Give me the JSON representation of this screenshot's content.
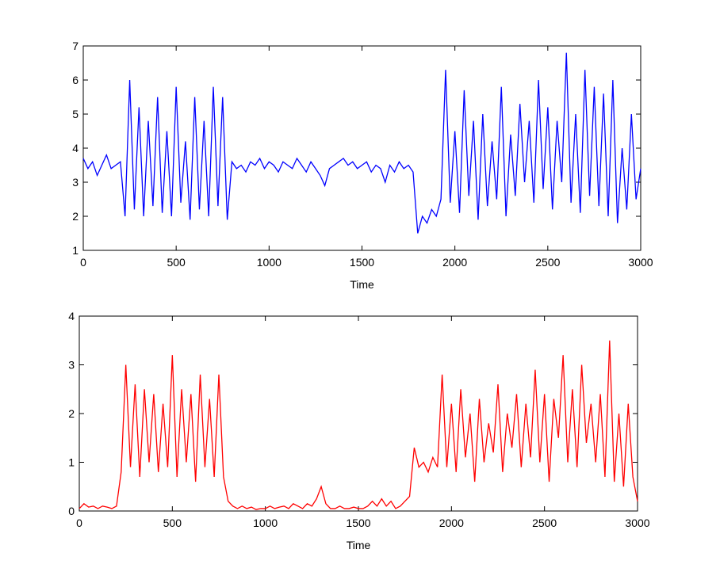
{
  "chart_data": [
    {
      "type": "line",
      "xlabel": "Time",
      "xlim": [
        0,
        3000
      ],
      "ylim": [
        1,
        7
      ],
      "xticks": [
        0,
        500,
        1000,
        1500,
        2000,
        2500,
        3000
      ],
      "yticks": [
        1,
        2,
        3,
        4,
        5,
        6,
        7
      ],
      "x": [
        0,
        25,
        50,
        75,
        100,
        125,
        150,
        175,
        200,
        225,
        250,
        275,
        300,
        325,
        350,
        375,
        400,
        425,
        450,
        475,
        500,
        525,
        550,
        575,
        600,
        625,
        650,
        675,
        700,
        725,
        750,
        775,
        800,
        825,
        850,
        875,
        900,
        925,
        950,
        975,
        1000,
        1025,
        1050,
        1075,
        1100,
        1125,
        1150,
        1175,
        1200,
        1225,
        1250,
        1275,
        1300,
        1325,
        1350,
        1375,
        1400,
        1425,
        1450,
        1475,
        1500,
        1525,
        1550,
        1575,
        1600,
        1625,
        1650,
        1675,
        1700,
        1725,
        1750,
        1775,
        1800,
        1825,
        1850,
        1875,
        1900,
        1925,
        1950,
        1975,
        2000,
        2025,
        2050,
        2075,
        2100,
        2125,
        2150,
        2175,
        2200,
        2225,
        2250,
        2275,
        2300,
        2325,
        2350,
        2375,
        2400,
        2425,
        2450,
        2475,
        2500,
        2525,
        2550,
        2575,
        2600,
        2625,
        2650,
        2675,
        2700,
        2725,
        2750,
        2775,
        2800,
        2825,
        2850,
        2875,
        2900,
        2925,
        2950,
        2975,
        3000
      ],
      "series": [
        {
          "color": "#0000ff",
          "values": [
            3.7,
            3.4,
            3.6,
            3.2,
            3.5,
            3.8,
            3.4,
            3.5,
            3.6,
            2.0,
            6.0,
            2.2,
            5.2,
            2.0,
            4.8,
            2.3,
            5.5,
            2.1,
            4.5,
            2.0,
            5.8,
            2.4,
            4.2,
            1.9,
            5.5,
            2.2,
            4.8,
            2.0,
            5.8,
            2.3,
            5.5,
            1.9,
            3.6,
            3.4,
            3.5,
            3.3,
            3.6,
            3.5,
            3.7,
            3.4,
            3.6,
            3.5,
            3.3,
            3.6,
            3.5,
            3.4,
            3.7,
            3.5,
            3.3,
            3.6,
            3.4,
            3.2,
            2.9,
            3.4,
            3.5,
            3.6,
            3.7,
            3.5,
            3.6,
            3.4,
            3.5,
            3.6,
            3.3,
            3.5,
            3.4,
            3.0,
            3.5,
            3.3,
            3.6,
            3.4,
            3.5,
            3.3,
            1.5,
            2.0,
            1.8,
            2.2,
            2.0,
            2.5,
            6.3,
            2.4,
            4.5,
            2.1,
            5.7,
            2.6,
            4.8,
            1.9,
            5.0,
            2.3,
            4.2,
            2.5,
            5.8,
            2.0,
            4.4,
            2.6,
            5.3,
            3.0,
            4.8,
            2.4,
            6.0,
            2.8,
            5.2,
            2.2,
            4.8,
            3.0,
            6.8,
            2.4,
            5.0,
            2.1,
            6.3,
            2.6,
            5.8,
            2.3,
            5.6,
            2.0,
            6.0,
            1.8,
            4.0,
            2.2,
            5.0,
            2.5,
            3.4
          ]
        }
      ]
    },
    {
      "type": "line",
      "xlabel": "Time",
      "xlim": [
        0,
        3000
      ],
      "ylim": [
        0,
        4
      ],
      "xticks": [
        0,
        500,
        1000,
        1500,
        2000,
        2500,
        3000
      ],
      "yticks": [
        0,
        1,
        2,
        3,
        4
      ],
      "x": [
        0,
        25,
        50,
        75,
        100,
        125,
        150,
        175,
        200,
        225,
        250,
        275,
        300,
        325,
        350,
        375,
        400,
        425,
        450,
        475,
        500,
        525,
        550,
        575,
        600,
        625,
        650,
        675,
        700,
        725,
        750,
        775,
        800,
        825,
        850,
        875,
        900,
        925,
        950,
        975,
        1000,
        1025,
        1050,
        1075,
        1100,
        1125,
        1150,
        1175,
        1200,
        1225,
        1250,
        1275,
        1300,
        1325,
        1350,
        1375,
        1400,
        1425,
        1450,
        1475,
        1500,
        1525,
        1550,
        1575,
        1600,
        1625,
        1650,
        1675,
        1700,
        1725,
        1750,
        1775,
        1800,
        1825,
        1850,
        1875,
        1900,
        1925,
        1950,
        1975,
        2000,
        2025,
        2050,
        2075,
        2100,
        2125,
        2150,
        2175,
        2200,
        2225,
        2250,
        2275,
        2300,
        2325,
        2350,
        2375,
        2400,
        2425,
        2450,
        2475,
        2500,
        2525,
        2550,
        2575,
        2600,
        2625,
        2650,
        2675,
        2700,
        2725,
        2750,
        2775,
        2800,
        2825,
        2850,
        2875,
        2900,
        2925,
        2950,
        2975,
        3000
      ],
      "series": [
        {
          "color": "#ff0000",
          "values": [
            0.05,
            0.15,
            0.08,
            0.1,
            0.05,
            0.1,
            0.08,
            0.05,
            0.1,
            0.8,
            3.0,
            0.9,
            2.6,
            0.7,
            2.5,
            1.0,
            2.4,
            0.8,
            2.2,
            0.9,
            3.2,
            0.7,
            2.5,
            1.0,
            2.4,
            0.6,
            2.8,
            0.9,
            2.3,
            0.7,
            2.8,
            0.7,
            0.2,
            0.1,
            0.05,
            0.1,
            0.05,
            0.08,
            0.03,
            0.05,
            0.05,
            0.1,
            0.05,
            0.08,
            0.1,
            0.05,
            0.15,
            0.1,
            0.05,
            0.15,
            0.1,
            0.25,
            0.5,
            0.15,
            0.05,
            0.05,
            0.1,
            0.05,
            0.05,
            0.08,
            0.05,
            0.05,
            0.1,
            0.2,
            0.1,
            0.25,
            0.1,
            0.2,
            0.05,
            0.1,
            0.2,
            0.3,
            1.3,
            0.9,
            1.0,
            0.8,
            1.1,
            0.9,
            2.8,
            0.9,
            2.2,
            0.8,
            2.5,
            1.1,
            2.0,
            0.6,
            2.3,
            1.0,
            1.8,
            1.2,
            2.6,
            0.8,
            2.0,
            1.3,
            2.4,
            0.9,
            2.2,
            1.1,
            2.9,
            1.0,
            2.4,
            0.6,
            2.3,
            1.5,
            3.2,
            1.0,
            2.5,
            0.9,
            3.0,
            1.4,
            2.2,
            1.0,
            2.4,
            0.7,
            3.5,
            0.6,
            2.0,
            0.5,
            2.2,
            0.7,
            0.2
          ]
        }
      ]
    }
  ]
}
